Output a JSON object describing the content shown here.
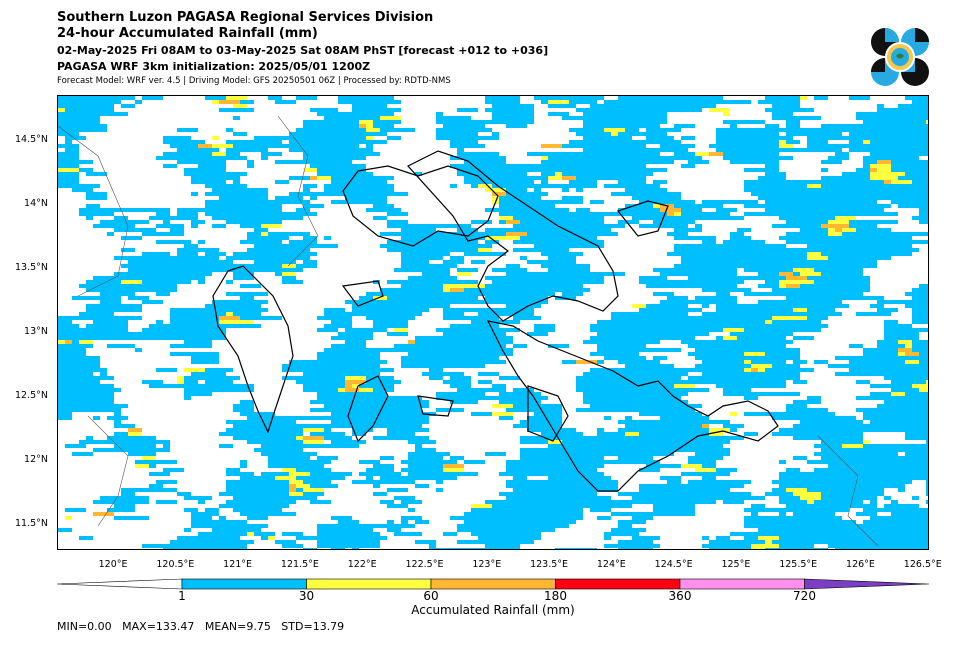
{
  "header": {
    "title": "Southern Luzon PAGASA Regional Services Division",
    "subtitle": "24-hour Accumulated Rainfall (mm)",
    "period": "02-May-2025 Fri 08AM to 03-May-2025 Sat 08AM PhST [forecast +012 to +036]",
    "init": "PAGASA WRF 3km initialization: 2025/05/01 1200Z",
    "model": "Forecast Model: WRF ver. 4.5 | Driving Model: GFS 20250501 06Z | Processed by: RDTD-NMS"
  },
  "logo": {
    "icon": "pagasa-logo-icon",
    "colors": [
      "#111111",
      "#27aae1",
      "#f2c94c",
      "#2e7d32"
    ]
  },
  "map": {
    "lon_range": [
      119.55,
      126.55
    ],
    "lat_range": [
      11.3,
      14.85
    ],
    "lat_ticks": [
      "14.5°N",
      "14°N",
      "13.5°N",
      "13°N",
      "12.5°N",
      "12°N",
      "11.5°N"
    ],
    "lat_values": [
      14.5,
      14.0,
      13.5,
      13.0,
      12.5,
      12.0,
      11.5
    ],
    "lon_ticks": [
      "120°E",
      "120.5°E",
      "121°E",
      "121.5°E",
      "122°E",
      "122.5°E",
      "123°E",
      "123.5°E",
      "124°E",
      "124.5°E",
      "125°E",
      "125.5°E",
      "126°E",
      "126.5°E"
    ],
    "lon_values": [
      120.0,
      120.5,
      121.0,
      121.5,
      122.0,
      122.5,
      123.0,
      123.5,
      124.0,
      124.5,
      125.0,
      125.5,
      126.0,
      126.5
    ]
  },
  "colorbar": {
    "label": "Accumulated Rainfall (mm)",
    "ticks": [
      "1",
      "30",
      "60",
      "180",
      "360",
      "720"
    ],
    "colors": [
      "#00bfff",
      "#ffff40",
      "#ffb631",
      "#ff0012",
      "#ff8fed",
      "#7a3fc4"
    ]
  },
  "stats": "MIN=0.00   MAX=133.47   MEAN=9.75   STD=13.79"
}
